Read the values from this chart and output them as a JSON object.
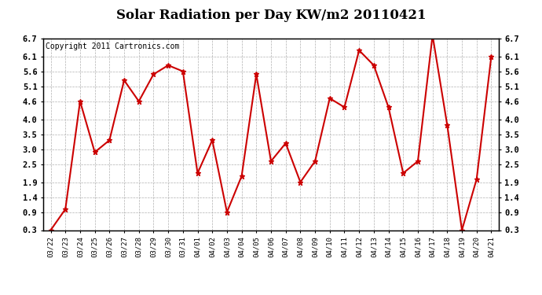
{
  "title": "Solar Radiation per Day KW/m2 20110421",
  "copyright": "Copyright 2011 Cartronics.com",
  "dates": [
    "03/22",
    "03/23",
    "03/24",
    "03/25",
    "03/26",
    "03/27",
    "03/28",
    "03/29",
    "03/30",
    "03/31",
    "04/01",
    "04/02",
    "04/03",
    "04/04",
    "04/05",
    "04/06",
    "04/07",
    "04/08",
    "04/09",
    "04/10",
    "04/11",
    "04/12",
    "04/13",
    "04/14",
    "04/15",
    "04/16",
    "04/17",
    "04/18",
    "04/19",
    "04/20",
    "04/21"
  ],
  "values": [
    0.3,
    1.0,
    4.6,
    2.9,
    3.3,
    5.3,
    4.6,
    5.5,
    5.8,
    5.6,
    2.2,
    3.3,
    0.9,
    2.1,
    5.5,
    2.6,
    3.2,
    1.9,
    2.6,
    4.7,
    4.4,
    6.3,
    5.8,
    4.4,
    2.2,
    2.6,
    6.8,
    3.8,
    0.3,
    2.0,
    6.1
  ],
  "ylim": [
    0.3,
    6.7
  ],
  "yticks": [
    0.3,
    0.9,
    1.4,
    1.9,
    2.5,
    3.0,
    3.5,
    4.0,
    4.6,
    5.1,
    5.6,
    6.1,
    6.7
  ],
  "line_color": "#cc0000",
  "marker": "*",
  "marker_size": 5,
  "bg_color": "#ffffff",
  "grid_color": "#b0b0b0",
  "title_fontsize": 12,
  "copyright_fontsize": 7
}
